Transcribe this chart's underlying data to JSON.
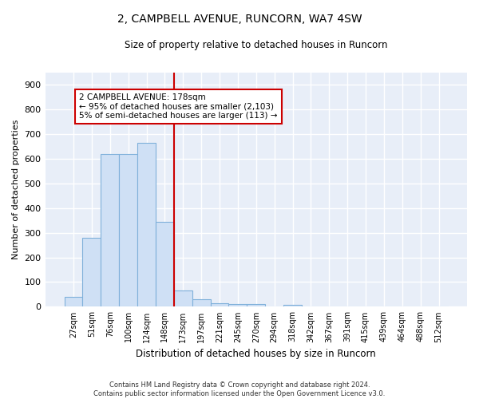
{
  "title": "2, CAMPBELL AVENUE, RUNCORN, WA7 4SW",
  "subtitle": "Size of property relative to detached houses in Runcorn",
  "xlabel": "Distribution of detached houses by size in Runcorn",
  "ylabel": "Number of detached properties",
  "categories": [
    "27sqm",
    "51sqm",
    "76sqm",
    "100sqm",
    "124sqm",
    "148sqm",
    "173sqm",
    "197sqm",
    "221sqm",
    "245sqm",
    "270sqm",
    "294sqm",
    "318sqm",
    "342sqm",
    "367sqm",
    "391sqm",
    "415sqm",
    "439sqm",
    "464sqm",
    "488sqm",
    "512sqm"
  ],
  "values": [
    40,
    278,
    620,
    620,
    665,
    345,
    65,
    30,
    15,
    10,
    10,
    0,
    8,
    0,
    0,
    0,
    0,
    0,
    0,
    0,
    0
  ],
  "bar_color": "#cfe0f5",
  "bar_edge_color": "#7fb0da",
  "vline_color": "#cc0000",
  "annotation_text": "2 CAMPBELL AVENUE: 178sqm\n← 95% of detached houses are smaller (2,103)\n5% of semi-detached houses are larger (113) →",
  "annotation_box_color": "#cc0000",
  "ylim": [
    0,
    950
  ],
  "yticks": [
    0,
    100,
    200,
    300,
    400,
    500,
    600,
    700,
    800,
    900
  ],
  "background_color": "#ffffff",
  "plot_bg_color": "#e8eef8",
  "grid_color": "#ffffff",
  "footer_line1": "Contains HM Land Registry data © Crown copyright and database right 2024.",
  "footer_line2": "Contains public sector information licensed under the Open Government Licence v3.0."
}
